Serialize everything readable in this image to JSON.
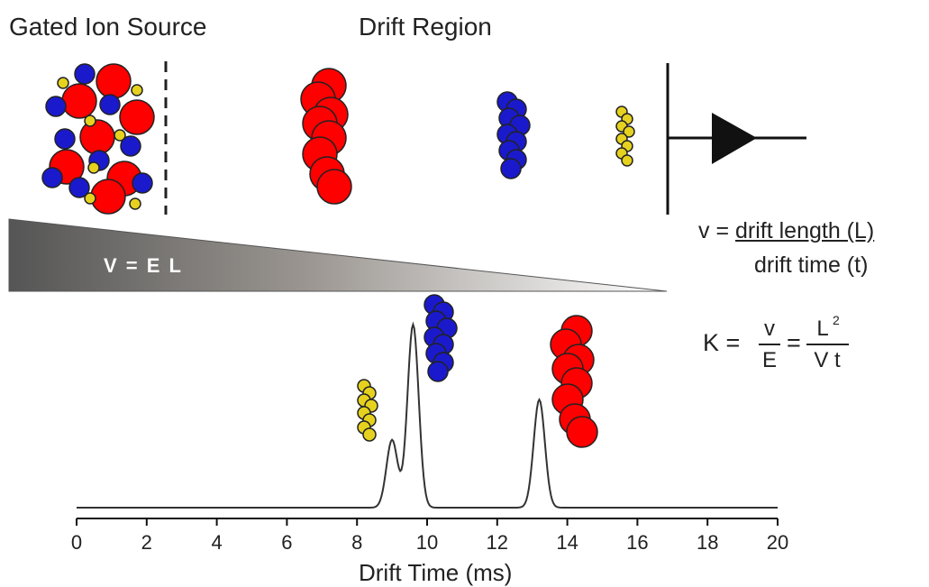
{
  "labels": {
    "gated_ion_source": "Gated Ion Source",
    "drift_region": "Drift Region",
    "voltage_equation": "V = E L"
  },
  "equations": {
    "velocity_lhs": "v =",
    "velocity_numerator": "drift length (L)",
    "velocity_denominator": "drift time (t)",
    "mobility_lhs": "K =",
    "mobility_frac1_num": "v",
    "mobility_frac1_den": "E",
    "mobility_eq": "=",
    "mobility_frac2_num": "L",
    "mobility_frac2_num_sup": "2",
    "mobility_frac2_den": "V t"
  },
  "colors": {
    "large_ion": "#ff0000",
    "medium_ion": "#1a1acc",
    "small_ion": "#e6d21e",
    "trace": "#333333"
  },
  "chart_data": {
    "type": "line",
    "xlabel": "Drift Time (ms)",
    "xlim": [
      0,
      20
    ],
    "x_ticks": [
      0,
      2,
      4,
      6,
      8,
      10,
      12,
      14,
      16,
      18,
      20
    ],
    "x_tick_labels": [
      "0",
      "2",
      "4",
      "6",
      "8",
      "10",
      "12",
      "14",
      "16",
      "18",
      "20"
    ],
    "grid": false,
    "peaks": [
      {
        "species": "small_ion",
        "x": 9.0,
        "relative_height": 0.37
      },
      {
        "species": "medium_ion",
        "x": 9.6,
        "relative_height": 1.0
      },
      {
        "species": "large_ion",
        "x": 13.2,
        "relative_height": 0.59
      }
    ]
  }
}
